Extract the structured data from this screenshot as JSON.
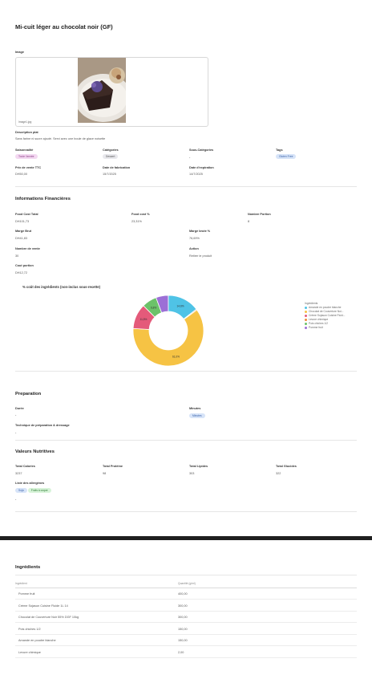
{
  "title": "Mi-cuit léger au chocolat noir (GF)",
  "image": {
    "label": "Image",
    "filename": "Image1.jpg"
  },
  "description": {
    "label": "Description plat",
    "text": "Sans farine ni sucre ajouté. Servi avec une boule de glace noisette"
  },
  "details": {
    "saisonnalite": {
      "label": "Saisonnalité",
      "value": "Toute l'année"
    },
    "categories": {
      "label": "Catégories",
      "value": "Dessert"
    },
    "sous_categories": {
      "label": "Sous-Catégories",
      "value": "-"
    },
    "tags": {
      "label": "Tags",
      "value": "Gluten Free"
    },
    "prix_vente": {
      "label": "Prix de vente TTC",
      "value": "DH50,00"
    },
    "date_fabrication": {
      "label": "Date de fabrication",
      "value": "15/7/2025"
    },
    "date_expiration": {
      "label": "Date d'expiration",
      "value": "14/7/2025"
    }
  },
  "finance": {
    "title": "Informations Financières",
    "food_cost_total": {
      "label": "Food Cost Total",
      "value": "DH101,73"
    },
    "food_cost_pct": {
      "label": "Food cost %",
      "value": "23,31%"
    },
    "nombre_portion": {
      "label": "Nombre Portion",
      "value": "8"
    },
    "marge_brut": {
      "label": "Marge Brut",
      "value": "DH41,83"
    },
    "marge_brute_pct": {
      "label": "Marge brute %",
      "value": "76,69%"
    },
    "nombre_vente": {
      "label": "Nombre de vente",
      "value": "30"
    },
    "action": {
      "label": "Action",
      "value": "Retirer le produit"
    },
    "cout_portion": {
      "label": "Cout portion",
      "value": "DH12,72"
    }
  },
  "chart_data": {
    "type": "pie",
    "title": "% coût des ingrédients (non-inclus sous-recette)",
    "legend_title": "Ingrédients",
    "legend_position": "right",
    "slices": [
      {
        "name": "Amande en poudre blanche",
        "value": 14.6,
        "label": "14,6%",
        "color": "#4fc3e6"
      },
      {
        "name": "Chocolat de Couverture Noi...",
        "value": 61.0,
        "label": "61,0%",
        "color": "#f6c344"
      },
      {
        "name": "Crème Sojasun Cuisine Fluid...",
        "value": 11.5,
        "label": "11,5%",
        "color": "#e45a7a"
      },
      {
        "name": "Levure chimique",
        "value": 0.4,
        "label": "",
        "color": "#f08a3a"
      },
      {
        "name": "Pois chiches 1/2",
        "value": 6.8,
        "label": "6,8%",
        "color": "#6cc26a"
      },
      {
        "name": "Pomme fruit",
        "value": 5.7,
        "label": "",
        "color": "#9c6fd6"
      }
    ]
  },
  "preparation": {
    "title": "Preparation",
    "duree": {
      "label": "Durée",
      "value": "-"
    },
    "minutes": {
      "label": "Minutes",
      "value": "Minutes"
    },
    "technique": {
      "label": "Technique de préparation & dressage",
      "value": "-"
    }
  },
  "nutrition": {
    "title": "Valeurs Nutritives",
    "calories": {
      "label": "Total Calories",
      "value": "3237"
    },
    "proteine": {
      "label": "Total Protéine",
      "value": "98"
    },
    "lipides": {
      "label": "Total Lipides",
      "value": "303"
    },
    "glucides": {
      "label": "Total Glucides",
      "value": "322"
    },
    "allergenes": {
      "label": "Liste des allergènes",
      "items": [
        "Soja",
        "Fruits à coque"
      ]
    },
    "extra": "-"
  },
  "ingredients": {
    "title": "Ingrédients",
    "col_name": "Ingrédient",
    "col_qty": "Quantité (g/ml)",
    "rows": [
      {
        "name": "Pomme fruit",
        "qty": "400,00"
      },
      {
        "name": "Crème Sojasun Cuisine Fluide 1L 14",
        "qty": "300,00"
      },
      {
        "name": "Chocolat de Couverture Noir 55% DGF 10kg",
        "qty": "300,00"
      },
      {
        "name": "Pois chiches 1/2",
        "qty": "150,00"
      },
      {
        "name": "Amande en poudre blanche",
        "qty": "150,00"
      },
      {
        "name": "Levure chimique",
        "qty": "2,00"
      }
    ]
  }
}
